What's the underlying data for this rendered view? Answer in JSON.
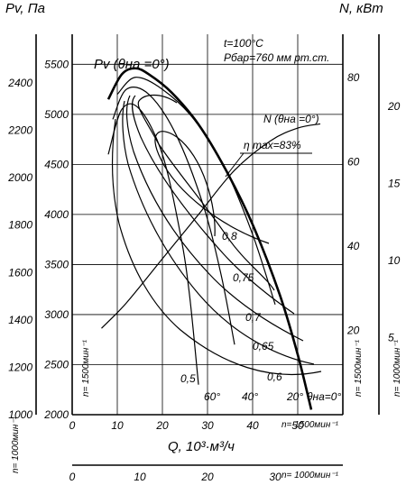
{
  "chart_data": {
    "type": "line",
    "title": "",
    "annotations": {
      "conditions": [
        "t=100°C",
        "Рбар=760 мм рт.ст."
      ],
      "pv_curve_label": "Pv (θна =0°)",
      "n_curve_label": "N (θна =0°)",
      "eta_max_label": "η max=83%"
    },
    "x_axis": {
      "label": "Q, 10³·м³/ч",
      "range": [
        0,
        60
      ],
      "ticks": [
        0,
        10,
        20,
        30,
        40,
        50
      ],
      "speed_note": "n= 1500мин⁻¹"
    },
    "x_axis_secondary": {
      "range": [
        0,
        40
      ],
      "ticks": [
        0,
        10,
        20,
        30
      ],
      "speed_note": "n= 1000мин⁻¹"
    },
    "y_axis_left_inner": {
      "label": "Pv, Па",
      "range": [
        2000,
        5800
      ],
      "ticks": [
        2000,
        2500,
        3000,
        3500,
        4000,
        4500,
        5000,
        5500
      ],
      "speed_note": "n= 1500мин⁻¹"
    },
    "y_axis_left_outer": {
      "ticks": [
        1000,
        1200,
        1400,
        1600,
        1800,
        2000,
        2200,
        2400
      ],
      "speed_note": "n= 1000мин⁻¹"
    },
    "y_axis_right_inner": {
      "label": "N, кВт",
      "ticks": [
        20,
        40,
        60,
        80
      ],
      "speed_note": "n= 1500мин⁻¹"
    },
    "y_axis_right_outer": {
      "ticks": [
        5,
        10,
        15,
        20
      ],
      "speed_note": "n= 1000мин⁻¹"
    },
    "series": [
      {
        "name": "Pv (θна =0°)",
        "x": [
          8,
          11,
          14,
          17,
          22,
          28,
          34,
          40,
          46,
          50,
          53
        ],
        "y": [
          5150,
          5400,
          5460,
          5400,
          5220,
          4900,
          4450,
          3900,
          3200,
          2600,
          2050
        ]
      },
      {
        "name": "N (θна =0°)",
        "x": [
          6.5,
          12,
          20,
          28,
          36,
          44,
          50,
          55
        ],
        "y": [
          20.5,
          26.5,
          37,
          47.5,
          58,
          65,
          68,
          69
        ]
      },
      {
        "name": "20°",
        "x": [
          10,
          14,
          20,
          27,
          34,
          40,
          45
        ],
        "y": [
          5200,
          5370,
          5250,
          4950,
          4450,
          3800,
          3100
        ]
      },
      {
        "name": "40°",
        "x": [
          9,
          12,
          17,
          23,
          29,
          33,
          36
        ],
        "y": [
          4950,
          5250,
          5200,
          4800,
          4100,
          3400,
          2700
        ]
      },
      {
        "name": "60°",
        "x": [
          8,
          11,
          15,
          20,
          24,
          26,
          28
        ],
        "y": [
          4600,
          5050,
          5050,
          4600,
          3800,
          3200,
          2300
        ]
      }
    ],
    "efficiency_contours": [
      {
        "label": "0,8"
      },
      {
        "label": "0,75"
      },
      {
        "label": "0,7"
      },
      {
        "label": "0,65"
      },
      {
        "label": "0,6"
      },
      {
        "label": "0,5"
      }
    ],
    "blade_angle_labels": [
      "60°",
      "40°",
      "20°",
      "θна=0°"
    ],
    "grid": true,
    "legend": "none"
  }
}
